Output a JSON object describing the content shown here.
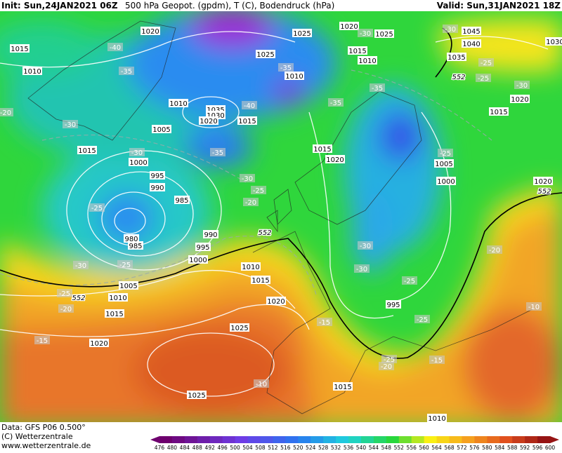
{
  "header": {
    "init": "Init: Sun,24JAN2021 06Z",
    "title": "500 hPa Geopot. (gpdm), T (C), Bodendruck (hPa)",
    "valid": "Valid: Sun,31JAN2021 18Z"
  },
  "footer": {
    "source": "Data: GFS P06 0.500°",
    "copyright": "(C) Wetterzentrale",
    "url": "www.wetterzentrale.de"
  },
  "colorbar": {
    "ticks": [
      476,
      480,
      484,
      488,
      492,
      496,
      500,
      504,
      508,
      512,
      516,
      520,
      524,
      528,
      532,
      536,
      540,
      544,
      548,
      552,
      556,
      560,
      564,
      568,
      572,
      576,
      580,
      584,
      588,
      592,
      596,
      600
    ]
  },
  "pressure_labels": [
    1020,
    1015,
    1010,
    1025,
    1020,
    1025,
    1025,
    1015,
    1010,
    1010,
    1045,
    1040,
    1035,
    1030,
    1020,
    1015,
    1010,
    1035,
    1030,
    1020,
    1015,
    1005,
    1015,
    1000,
    995,
    990,
    985,
    980,
    985,
    990,
    995,
    1000,
    1005,
    1010,
    1015,
    1020,
    1010,
    1015,
    1020,
    1025,
    1025,
    1015,
    1010,
    1015,
    1020,
    1005,
    1000,
    1020,
    995
  ],
  "temperature_labels": [
    -40,
    -35,
    -35,
    -30,
    -30,
    -25,
    -25,
    -30,
    -35,
    -35,
    -40,
    -30,
    -30,
    -35,
    -30,
    -25,
    -20,
    -25,
    -25,
    -20,
    -30,
    -25,
    -20,
    -15,
    -30,
    -30,
    -25,
    -25,
    -20,
    -15,
    -10,
    -25,
    -20,
    -15,
    -10,
    -25
  ],
  "height_labels": [
    552,
    552,
    552,
    552
  ]
}
